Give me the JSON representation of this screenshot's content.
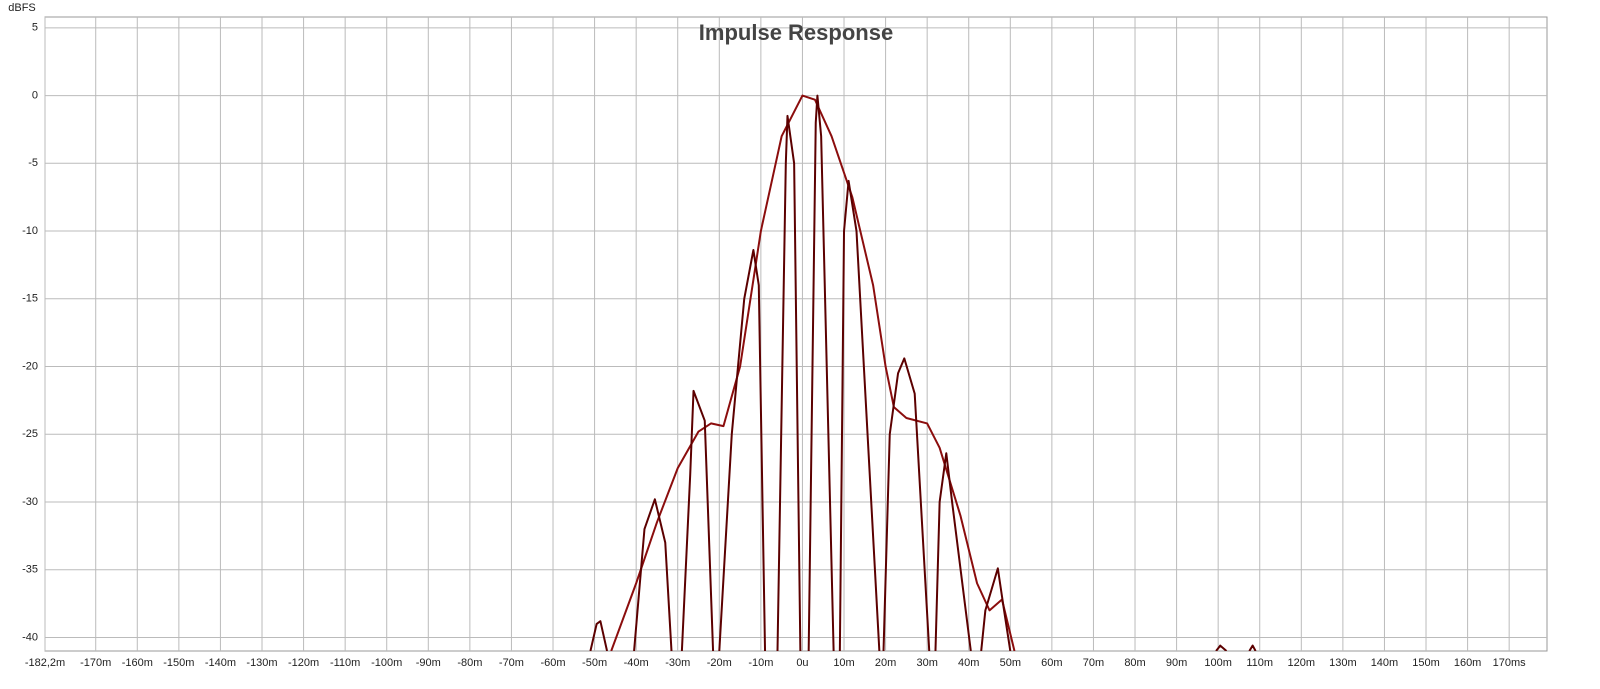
{
  "chart_data": {
    "type": "line",
    "title": "Impulse Response",
    "y_label": "dBFS",
    "xlim": [
      -182.2,
      179.1
    ],
    "ylim": [
      -41,
      5.8
    ],
    "xticks": [
      {
        "value": -182.2,
        "label": "-182,2m"
      },
      {
        "value": -170,
        "label": "-170m"
      },
      {
        "value": -160,
        "label": "-160m"
      },
      {
        "value": -150,
        "label": "-150m"
      },
      {
        "value": -140,
        "label": "-140m"
      },
      {
        "value": -130,
        "label": "-130m"
      },
      {
        "value": -120,
        "label": "-120m"
      },
      {
        "value": -110,
        "label": "-110m"
      },
      {
        "value": -100,
        "label": "-100m"
      },
      {
        "value": -90,
        "label": "-90m"
      },
      {
        "value": -80,
        "label": "-80m"
      },
      {
        "value": -70,
        "label": "-70m"
      },
      {
        "value": -60,
        "label": "-60m"
      },
      {
        "value": -50,
        "label": "-50m"
      },
      {
        "value": -40,
        "label": "-40m"
      },
      {
        "value": -30,
        "label": "-30m"
      },
      {
        "value": -20,
        "label": "-20m"
      },
      {
        "value": -10,
        "label": "-10m"
      },
      {
        "value": 0,
        "label": "0u"
      },
      {
        "value": 10,
        "label": "10m"
      },
      {
        "value": 20,
        "label": "20m"
      },
      {
        "value": 30,
        "label": "30m"
      },
      {
        "value": 40,
        "label": "40m"
      },
      {
        "value": 50,
        "label": "50m"
      },
      {
        "value": 60,
        "label": "60m"
      },
      {
        "value": 70,
        "label": "70m"
      },
      {
        "value": 80,
        "label": "80m"
      },
      {
        "value": 90,
        "label": "90m"
      },
      {
        "value": 100,
        "label": "100m"
      },
      {
        "value": 110,
        "label": "110m"
      },
      {
        "value": 120,
        "label": "120m"
      },
      {
        "value": 130,
        "label": "130m"
      },
      {
        "value": 140,
        "label": "140m"
      },
      {
        "value": 150,
        "label": "150m"
      },
      {
        "value": 160,
        "label": "160m"
      },
      {
        "value": 170,
        "label": "170ms"
      }
    ],
    "yticks": [
      5,
      0,
      -5,
      -10,
      -15,
      -20,
      -25,
      -30,
      -35,
      -40
    ],
    "grid": true,
    "series": [
      {
        "color": "#8b0d0d",
        "x": [
          -46,
          -40,
          -35,
          -30,
          -25,
          -22,
          -19,
          -15,
          -10,
          -5,
          0,
          3,
          7,
          12,
          17,
          20,
          22,
          25,
          30,
          33,
          38,
          42,
          45,
          48,
          51
        ],
        "values": [
          -41,
          -36,
          -31.5,
          -27.5,
          -24.8,
          -24.2,
          -24.4,
          -20,
          -10,
          -3,
          0,
          -0.3,
          -3,
          -7.5,
          -14,
          -20,
          -23,
          -23.8,
          -24.2,
          -26,
          -31,
          -36,
          -38,
          -37.2,
          -41
        ]
      },
      {
        "color": "#5c0000",
        "x": [
          -51,
          -49.5,
          -48.6,
          -47,
          null,
          -40.5,
          -38,
          -35.5,
          -33,
          -31.5,
          null,
          -29,
          -27,
          -26.2,
          -23.5,
          -21.5,
          null,
          -20,
          -17,
          -14,
          -11.8,
          -10.5,
          -9,
          null,
          -6,
          -4,
          -3.6,
          -2,
          -0.5,
          null,
          1.5,
          3.2,
          3.6,
          4.5,
          7.5,
          null,
          9,
          10,
          11.1,
          13,
          18.5,
          null,
          19.5,
          21,
          23,
          24.5,
          27,
          30.5,
          null,
          32,
          33,
          34.6,
          36,
          40.5,
          null,
          43,
          44,
          47,
          48.5,
          50,
          null,
          99.5,
          100.5,
          102,
          null,
          107.5,
          108.3,
          109
        ],
        "values": [
          -41,
          -39,
          -38.8,
          -41,
          null,
          -41,
          -32,
          -29.8,
          -33,
          -41,
          null,
          -41,
          -28,
          -21.8,
          -24,
          -41,
          null,
          -41,
          -25,
          -15,
          -11.4,
          -14,
          -41,
          null,
          -41,
          -5,
          -1.5,
          -5,
          -41,
          null,
          -41,
          -2,
          0,
          -3,
          -41,
          null,
          -41,
          -10,
          -6.3,
          -10,
          -41,
          null,
          -41,
          -25,
          -20.5,
          -19.4,
          -22,
          -41,
          null,
          -41,
          -30,
          -26.4,
          -30,
          -41,
          null,
          -41,
          -38,
          -34.9,
          -38,
          -41,
          null,
          -41,
          -40.6,
          -41,
          null,
          -41,
          -40.6,
          -41
        ]
      }
    ]
  }
}
